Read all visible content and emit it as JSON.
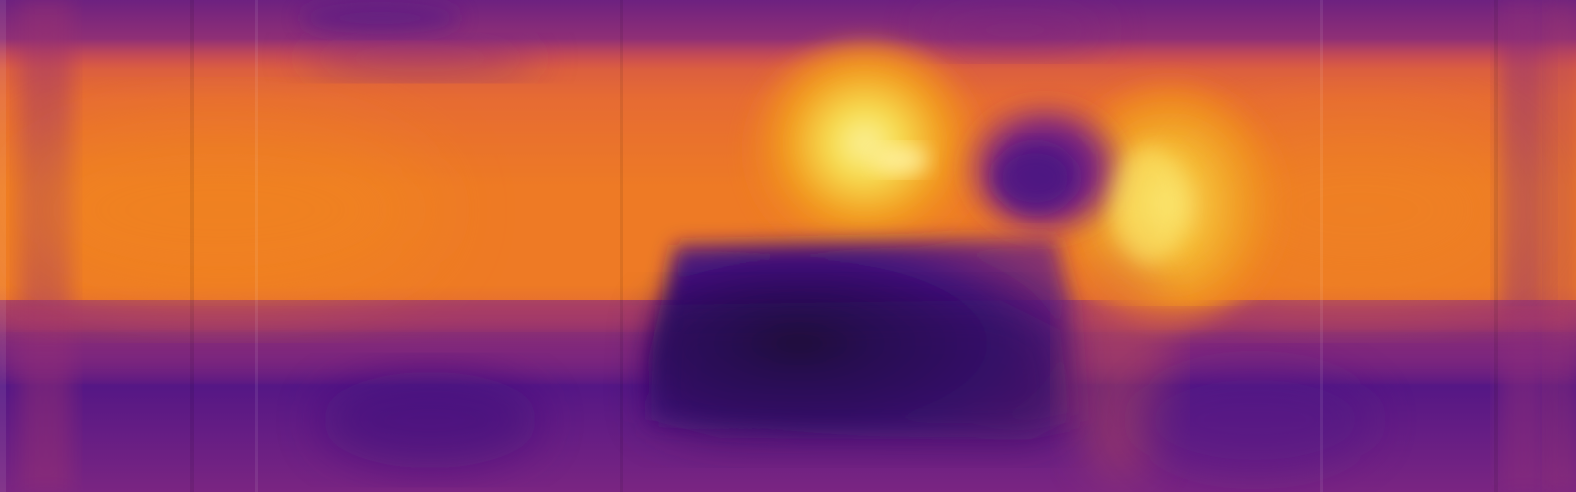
{
  "image": {
    "palette": {
      "dark": "#120714",
      "deep_purple": "#42127d",
      "purple": "#6d2180",
      "magenta": "#a33573",
      "orange": "#ee7a25",
      "yellow": "#f7df52",
      "pale_yellow": "#fbf1a0"
    },
    "subject_icons": [
      "thermal-heatmap",
      "dark-box-shape",
      "hot-spot-left",
      "hot-spot-right",
      "dark-object-top-center"
    ]
  }
}
